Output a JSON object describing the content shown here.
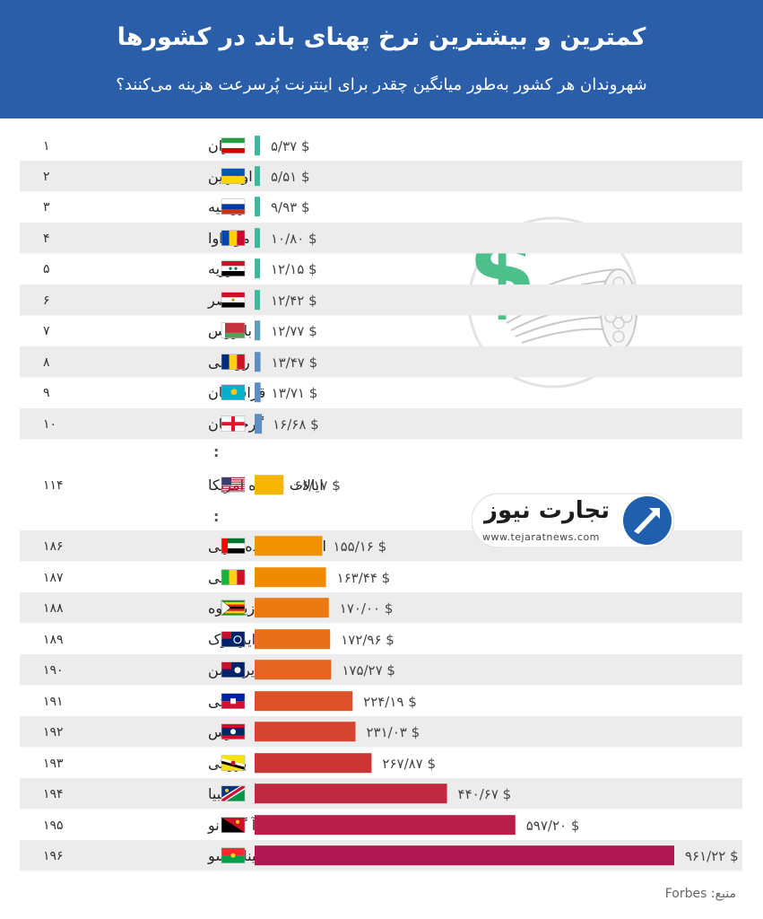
{
  "header": {
    "title": "کمترین و بیشترین نرخ پهنای باند در کشورها",
    "subtitle": "شهروندان هر کشور به‌طور میانگین چقدر برای اینترنت پُرسرعت هزینه می‌کنند؟"
  },
  "source": "منبع: Forbes",
  "logo": {
    "name": "تجارت نیوز",
    "url": "www.tejaratnews.com"
  },
  "gap_marker": ":",
  "chart_data": {
    "type": "bar",
    "orientation": "horizontal",
    "unit": "$",
    "title": "کمترین و بیشترین نرخ پهنای باند در کشورها",
    "subtitle": "شهروندان هر کشور به‌طور میانگین چقدر برای اینترنت پُرسرعت هزینه می‌کنند؟",
    "xlim": [
      0,
      961.22
    ],
    "groups": [
      {
        "rows": [
          {
            "rank": "۱",
            "country": "ایران",
            "value": 5.37,
            "label": "۵/۳۷ $",
            "flag": "iran-flag",
            "color": "#3db89a"
          },
          {
            "rank": "۲",
            "country": "اوکراین",
            "value": 5.51,
            "label": "۵/۵۱ $",
            "flag": "ukraine-flag",
            "color": "#3db89a"
          },
          {
            "rank": "۳",
            "country": "روسیه",
            "value": 9.93,
            "label": "۹/۹۳ $",
            "flag": "russia-flag",
            "color": "#3db89a"
          },
          {
            "rank": "۴",
            "country": "مولداوا",
            "value": 10.8,
            "label": "۱۰/۸۰ $",
            "flag": "moldova-flag",
            "color": "#3db89a"
          },
          {
            "rank": "۵",
            "country": "سوریه",
            "value": 12.15,
            "label": "۱۲/۱۵ $",
            "flag": "syria-flag",
            "color": "#3db89a"
          },
          {
            "rank": "۶",
            "country": "مصر",
            "value": 12.42,
            "label": "۱۲/۴۲ $",
            "flag": "egypt-flag",
            "color": "#3db89a"
          },
          {
            "rank": "۷",
            "country": "بلاروس",
            "value": 12.77,
            "label": "۱۲/۷۷ $",
            "flag": "belarus-flag",
            "color": "#5fa0b8"
          },
          {
            "rank": "۸",
            "country": "رومانی",
            "value": 13.47,
            "label": "۱۳/۴۷ $",
            "flag": "romania-flag",
            "color": "#5f8fc0"
          },
          {
            "rank": "۹",
            "country": "قزاقستان",
            "value": 13.71,
            "label": "۱۳/۷۱ $",
            "flag": "kazakhstan-flag",
            "color": "#5f8fc0"
          },
          {
            "rank": "۱۰",
            "country": "گرجستان",
            "value": 16.68,
            "label": "۱۶/۶۸ $",
            "flag": "georgia-flag",
            "color": "#5f8fc0"
          }
        ]
      },
      {
        "rows": [
          {
            "rank": "۱۱۴",
            "country": "ایالات متحده آمریکا",
            "value": 66.17,
            "label": "۶۶/۱۷ $",
            "flag": "usa-flag",
            "color": "#f7b500"
          }
        ]
      },
      {
        "rows": [
          {
            "rank": "۱۸۶",
            "country": "امارات متحده عربی",
            "value": 155.16,
            "label": "۱۵۵/۱۶ $",
            "flag": "uae-flag",
            "color": "#f39200"
          },
          {
            "rank": "۱۸۷",
            "country": "مالی",
            "value": 163.44,
            "label": "۱۶۳/۴۴ $",
            "flag": "mali-flag",
            "color": "#f08a00"
          },
          {
            "rank": "۱۸۸",
            "country": "زیمبابوه",
            "value": 170.0,
            "label": "۱۷۰/۰۰ $",
            "flag": "zimbabwe-flag",
            "color": "#ea7a10"
          },
          {
            "rank": "۱۸۹",
            "country": "جزایر کوک",
            "value": 172.96,
            "label": "۱۷۲/۹۶ $",
            "flag": "cook-islands-flag",
            "color": "#e8701a"
          },
          {
            "rank": "۱۹۰",
            "country": "جزایر کیمن",
            "value": 175.27,
            "label": "۱۷۵/۲۷ $",
            "flag": "cayman-islands-flag",
            "color": "#e46420"
          },
          {
            "rank": "۱۹۱",
            "country": "هائیتی",
            "value": 224.19,
            "label": "۲۲۴/۱۹ $",
            "flag": "haiti-flag",
            "color": "#dc5128"
          },
          {
            "rank": "۱۹۲",
            "country": "لائوس",
            "value": 231.03,
            "label": "۲۳۱/۰۳ $",
            "flag": "laos-flag",
            "color": "#d44430"
          },
          {
            "rank": "۱۹۳",
            "country": "برونئی",
            "value": 267.87,
            "label": "۲۶۷/۸۷ $",
            "flag": "brunei-flag",
            "color": "#cc3535"
          },
          {
            "rank": "۱۹۴",
            "country": "نامیبیا",
            "value": 440.67,
            "label": "۴۴۰/۶۷ $",
            "flag": "namibia-flag",
            "color": "#c02a40"
          },
          {
            "rank": "۱۹۵",
            "country": "پاپوآ گینه نو",
            "value": 597.2,
            "label": "۵۹۷/۲۰ $",
            "flag": "papua-new-guinea-flag",
            "color": "#b81e4a"
          },
          {
            "rank": "۱۹۶",
            "country": "بورکینا فاسو",
            "value": 961.22,
            "label": "۹۶۱/۲۲ $",
            "flag": "burkina-faso-flag",
            "color": "#b01650"
          }
        ]
      }
    ]
  }
}
